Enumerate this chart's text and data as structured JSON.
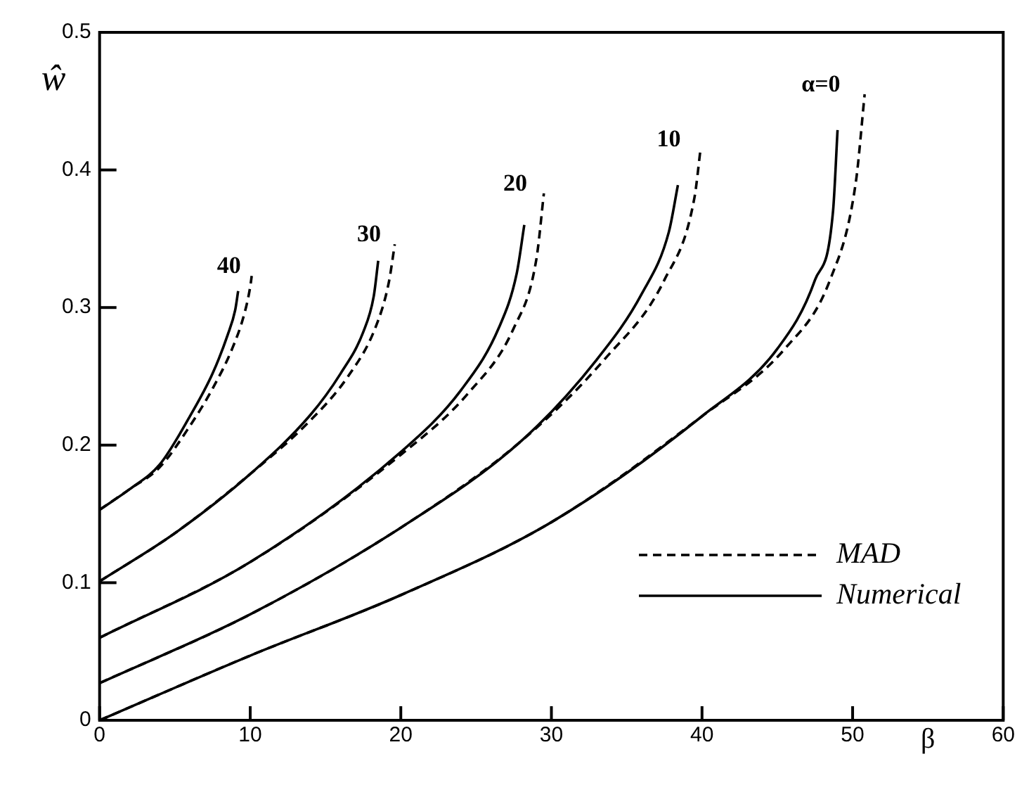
{
  "chart_data": {
    "type": "line",
    "xlabel": "β",
    "ylabel": "ŵ",
    "xlim": [
      0,
      60
    ],
    "ylim": [
      0,
      0.5
    ],
    "xticks": [
      0,
      10,
      20,
      30,
      40,
      50,
      60
    ],
    "yticks": [
      0,
      0.1,
      0.2,
      0.3,
      0.4,
      0.5
    ],
    "legend": "bottom right",
    "marker": "none",
    "series": [
      {
        "name": "MAD",
        "color": "#000000",
        "line_style": "dashed",
        "x": [
          0,
          10,
          20,
          30,
          40,
          45.5,
          48.5,
          50.2,
          50.8
        ],
        "values": [
          0,
          0.047,
          0.091,
          0.144,
          0.221,
          0.27,
          0.32,
          0.39,
          0.455
        ]
      },
      {
        "name": "Numerical",
        "color": "#000000",
        "line_style": "solid",
        "x": [
          0,
          10,
          20,
          30,
          40,
          45,
          47.5,
          48.7,
          49.0
        ],
        "values": [
          0,
          0.047,
          0.091,
          0.144,
          0.221,
          0.27,
          0.32,
          0.37,
          0.429
        ]
      },
      {
        "color": "#000000",
        "line_style": "dashed",
        "x": [
          0,
          10,
          20,
          28,
          33.5,
          37.5,
          39.5,
          39.9
        ],
        "values": [
          0.027,
          0.077,
          0.14,
          0.203,
          0.262,
          0.32,
          0.38,
          0.415
        ]
      },
      {
        "color": "#000000",
        "line_style": "solid",
        "x": [
          0,
          10,
          20,
          28,
          33,
          36,
          37.8,
          38.4
        ],
        "values": [
          0.027,
          0.077,
          0.14,
          0.203,
          0.262,
          0.31,
          0.355,
          0.389
        ]
      },
      {
        "color": "#000000",
        "line_style": "dashed",
        "x": [
          0,
          10,
          20,
          24.5,
          27.5,
          29,
          29.5
        ],
        "values": [
          0.06,
          0.115,
          0.193,
          0.238,
          0.285,
          0.335,
          0.383
        ]
      },
      {
        "color": "#000000",
        "line_style": "solid",
        "x": [
          0,
          10,
          20,
          24,
          26.5,
          27.7,
          28.2
        ],
        "values": [
          0.06,
          0.115,
          0.195,
          0.24,
          0.285,
          0.325,
          0.36
        ]
      },
      {
        "color": "#000000",
        "line_style": "dashed",
        "x": [
          0,
          5,
          10,
          14,
          16.5,
          18.3,
          19.2,
          19.6
        ],
        "values": [
          0.101,
          0.136,
          0.179,
          0.218,
          0.25,
          0.285,
          0.318,
          0.346
        ]
      },
      {
        "color": "#000000",
        "line_style": "solid",
        "x": [
          0,
          5,
          10,
          14,
          16,
          17.5,
          18.2,
          18.5
        ],
        "values": [
          0.101,
          0.136,
          0.179,
          0.222,
          0.252,
          0.282,
          0.308,
          0.334
        ]
      },
      {
        "color": "#000000",
        "line_style": "dashed",
        "x": [
          0,
          2,
          4,
          6,
          7.5,
          8.8,
          9.6,
          10.0,
          10.1
        ],
        "values": [
          0.153,
          0.168,
          0.184,
          0.214,
          0.241,
          0.27,
          0.295,
          0.315,
          0.323
        ]
      },
      {
        "color": "#000000",
        "line_style": "solid",
        "x": [
          0,
          2,
          4,
          6,
          7.5,
          8.5,
          9,
          9.2
        ],
        "values": [
          0.153,
          0.168,
          0.186,
          0.221,
          0.252,
          0.28,
          0.298,
          0.312
        ]
      }
    ],
    "annotations": [
      "α=0",
      "10",
      "20",
      "30",
      "40"
    ]
  }
}
